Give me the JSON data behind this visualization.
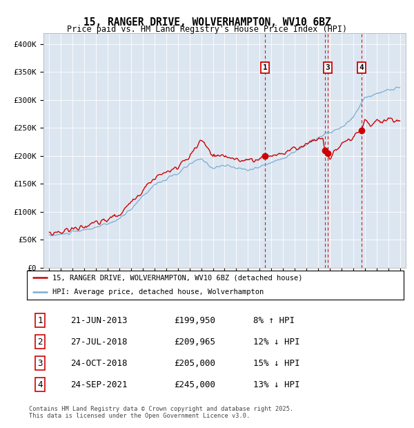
{
  "title": "15, RANGER DRIVE, WOLVERHAMPTON, WV10 6BZ",
  "subtitle": "Price paid vs. HM Land Registry's House Price Index (HPI)",
  "ylim": [
    0,
    420000
  ],
  "yticks": [
    0,
    50000,
    100000,
    150000,
    200000,
    250000,
    300000,
    350000,
    400000
  ],
  "ytick_labels": [
    "£0",
    "£50K",
    "£100K",
    "£150K",
    "£200K",
    "£250K",
    "£300K",
    "£350K",
    "£400K"
  ],
  "plot_bg_color": "#dce6f1",
  "red_line_color": "#cc0000",
  "blue_line_color": "#7aadd4",
  "dashed_line_color": "#cc0000",
  "legend_label_red": "15, RANGER DRIVE, WOLVERHAMPTON, WV10 6BZ (detached house)",
  "legend_label_blue": "HPI: Average price, detached house, Wolverhampton",
  "transactions": [
    {
      "label": "1",
      "date_str": "21-JUN-2013",
      "price": 199950,
      "pct": "8% ↑ HPI",
      "x_year": 2013.47,
      "show_on_chart": true
    },
    {
      "label": "2",
      "date_str": "27-JUL-2018",
      "price": 209965,
      "pct": "12% ↓ HPI",
      "x_year": 2018.57,
      "show_on_chart": false
    },
    {
      "label": "3",
      "date_str": "24-OCT-2018",
      "price": 205000,
      "pct": "15% ↓ HPI",
      "x_year": 2018.82,
      "show_on_chart": true
    },
    {
      "label": "4",
      "date_str": "24-SEP-2021",
      "price": 245000,
      "pct": "13% ↓ HPI",
      "x_year": 2021.73,
      "show_on_chart": true
    }
  ],
  "table_rows": [
    {
      "label": "1",
      "date_str": "21-JUN-2013",
      "price": "£199,950",
      "pct": "8% ↑ HPI"
    },
    {
      "label": "2",
      "date_str": "27-JUL-2018",
      "price": "£209,965",
      "pct": "12% ↓ HPI"
    },
    {
      "label": "3",
      "date_str": "24-OCT-2018",
      "price": "£205,000",
      "pct": "15% ↓ HPI"
    },
    {
      "label": "4",
      "date_str": "24-SEP-2021",
      "price": "£245,000",
      "pct": "13% ↓ HPI"
    }
  ],
  "footer": "Contains HM Land Registry data © Crown copyright and database right 2025.\nThis data is licensed under the Open Government Licence v3.0.",
  "xlim_start": 1994.5,
  "xlim_end": 2025.5
}
